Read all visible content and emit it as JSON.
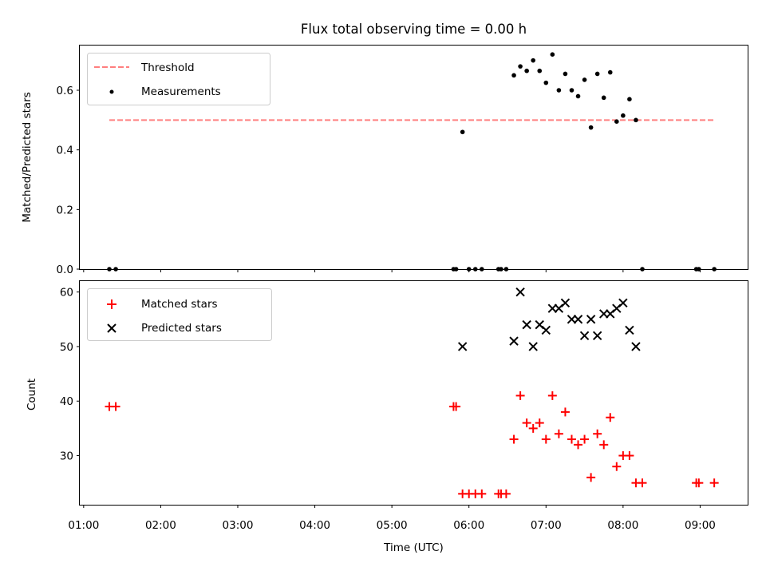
{
  "colors": {
    "threshold": "#ff7f7f",
    "measurements": "#000000",
    "matched": "#ff0000",
    "predicted": "#000000"
  },
  "chart_data": [
    {
      "type": "scatter",
      "title": "Flux total observing time = 0.00 h",
      "xlabel": "",
      "ylabel": "Matched/Predicted stars",
      "x_unit": "time of day (UTC)",
      "xlim": [
        "00:57",
        "09:37"
      ],
      "ylim": [
        0,
        0.75
      ],
      "yticks": [
        0.0,
        0.2,
        0.4,
        0.6
      ],
      "ytick_labels": [
        "0.0",
        "0.2",
        "0.4",
        "0.6"
      ],
      "legend_position": "upper left",
      "threshold": {
        "name": "Threshold",
        "value": 0.5,
        "x_start": "01:20",
        "x_end": "09:12",
        "style": "dashed"
      },
      "series": [
        {
          "name": "Measurements",
          "marker": "dot",
          "points": [
            {
              "x": "01:20",
              "y": 0.0
            },
            {
              "x": "01:25",
              "y": 0.0
            },
            {
              "x": "05:48",
              "y": 0.0
            },
            {
              "x": "05:50",
              "y": 0.0
            },
            {
              "x": "05:55",
              "y": 0.46
            },
            {
              "x": "06:00",
              "y": 0.0
            },
            {
              "x": "06:05",
              "y": 0.0
            },
            {
              "x": "06:10",
              "y": 0.0
            },
            {
              "x": "06:23",
              "y": 0.0
            },
            {
              "x": "06:25",
              "y": 0.0
            },
            {
              "x": "06:29",
              "y": 0.0
            },
            {
              "x": "06:35",
              "y": 0.65
            },
            {
              "x": "06:40",
              "y": 0.68
            },
            {
              "x": "06:45",
              "y": 0.665
            },
            {
              "x": "06:50",
              "y": 0.7
            },
            {
              "x": "06:55",
              "y": 0.665
            },
            {
              "x": "07:00",
              "y": 0.625
            },
            {
              "x": "07:05",
              "y": 0.72
            },
            {
              "x": "07:10",
              "y": 0.6
            },
            {
              "x": "07:15",
              "y": 0.655
            },
            {
              "x": "07:20",
              "y": 0.6
            },
            {
              "x": "07:25",
              "y": 0.58
            },
            {
              "x": "07:30",
              "y": 0.635
            },
            {
              "x": "07:35",
              "y": 0.475
            },
            {
              "x": "07:40",
              "y": 0.655
            },
            {
              "x": "07:45",
              "y": 0.575
            },
            {
              "x": "07:50",
              "y": 0.66
            },
            {
              "x": "07:55",
              "y": 0.495
            },
            {
              "x": "08:00",
              "y": 0.515
            },
            {
              "x": "08:05",
              "y": 0.57
            },
            {
              "x": "08:10",
              "y": 0.5
            },
            {
              "x": "08:15",
              "y": 0.0
            },
            {
              "x": "08:57",
              "y": 0.0
            },
            {
              "x": "08:59",
              "y": 0.0
            },
            {
              "x": "09:11",
              "y": 0.0
            }
          ]
        }
      ]
    },
    {
      "type": "scatter",
      "title": "",
      "xlabel": "Time (UTC)",
      "ylabel": "Count",
      "x_unit": "time of day (UTC)",
      "xlim": [
        "00:57",
        "09:37"
      ],
      "ylim": [
        21,
        62
      ],
      "xticks": [
        "01:00",
        "02:00",
        "03:00",
        "04:00",
        "05:00",
        "06:00",
        "07:00",
        "08:00",
        "09:00"
      ],
      "yticks": [
        30,
        40,
        50,
        60
      ],
      "ytick_labels": [
        "30",
        "40",
        "50",
        "60"
      ],
      "legend_position": "upper left",
      "series": [
        {
          "name": "Matched stars",
          "marker": "plus",
          "points": [
            {
              "x": "01:20",
              "y": 39
            },
            {
              "x": "01:25",
              "y": 39
            },
            {
              "x": "05:48",
              "y": 39
            },
            {
              "x": "05:50",
              "y": 39
            },
            {
              "x": "05:55",
              "y": 23
            },
            {
              "x": "06:00",
              "y": 23
            },
            {
              "x": "06:05",
              "y": 23
            },
            {
              "x": "06:10",
              "y": 23
            },
            {
              "x": "06:23",
              "y": 23
            },
            {
              "x": "06:25",
              "y": 23
            },
            {
              "x": "06:29",
              "y": 23
            },
            {
              "x": "06:35",
              "y": 33
            },
            {
              "x": "06:40",
              "y": 41
            },
            {
              "x": "06:45",
              "y": 36
            },
            {
              "x": "06:50",
              "y": 35
            },
            {
              "x": "06:55",
              "y": 36
            },
            {
              "x": "07:00",
              "y": 33
            },
            {
              "x": "07:05",
              "y": 41
            },
            {
              "x": "07:10",
              "y": 34
            },
            {
              "x": "07:15",
              "y": 38
            },
            {
              "x": "07:20",
              "y": 33
            },
            {
              "x": "07:25",
              "y": 32
            },
            {
              "x": "07:30",
              "y": 33
            },
            {
              "x": "07:35",
              "y": 26
            },
            {
              "x": "07:40",
              "y": 34
            },
            {
              "x": "07:45",
              "y": 32
            },
            {
              "x": "07:50",
              "y": 37
            },
            {
              "x": "07:55",
              "y": 28
            },
            {
              "x": "08:00",
              "y": 30
            },
            {
              "x": "08:05",
              "y": 30
            },
            {
              "x": "08:10",
              "y": 25
            },
            {
              "x": "08:15",
              "y": 25
            },
            {
              "x": "08:57",
              "y": 25
            },
            {
              "x": "08:59",
              "y": 25
            },
            {
              "x": "09:11",
              "y": 25
            }
          ]
        },
        {
          "name": "Predicted stars",
          "marker": "x",
          "points": [
            {
              "x": "05:55",
              "y": 50
            },
            {
              "x": "06:35",
              "y": 51
            },
            {
              "x": "06:40",
              "y": 60
            },
            {
              "x": "06:45",
              "y": 54
            },
            {
              "x": "06:50",
              "y": 50
            },
            {
              "x": "06:55",
              "y": 54
            },
            {
              "x": "07:00",
              "y": 53
            },
            {
              "x": "07:05",
              "y": 57
            },
            {
              "x": "07:10",
              "y": 57
            },
            {
              "x": "07:15",
              "y": 58
            },
            {
              "x": "07:20",
              "y": 55
            },
            {
              "x": "07:25",
              "y": 55
            },
            {
              "x": "07:30",
              "y": 52
            },
            {
              "x": "07:35",
              "y": 55
            },
            {
              "x": "07:40",
              "y": 52
            },
            {
              "x": "07:45",
              "y": 56
            },
            {
              "x": "07:50",
              "y": 56
            },
            {
              "x": "07:55",
              "y": 57
            },
            {
              "x": "08:00",
              "y": 58
            },
            {
              "x": "08:05",
              "y": 53
            },
            {
              "x": "08:10",
              "y": 50
            }
          ]
        }
      ]
    }
  ]
}
